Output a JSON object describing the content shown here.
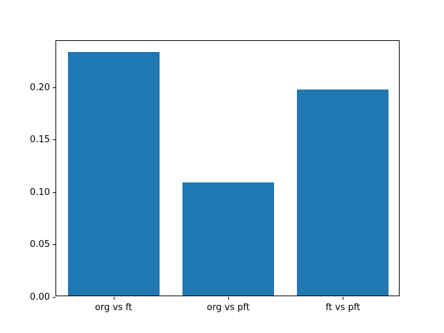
{
  "chart_data": {
    "type": "bar",
    "categories": [
      "org vs ft",
      "org vs pft",
      "ft vs pft"
    ],
    "values": [
      0.233,
      0.108,
      0.197
    ],
    "title": "",
    "xlabel": "",
    "ylabel": "",
    "ylim": [
      0,
      0.2447
    ],
    "yticks": [
      0.0,
      0.05,
      0.1,
      0.15,
      0.2
    ],
    "ytick_labels": [
      "0.00",
      "0.05",
      "0.10",
      "0.15",
      "0.20"
    ],
    "bar_color": "#1f77b4",
    "background_color": "#ffffff",
    "spine_color": "#000000",
    "grid": false,
    "legend": null,
    "bar_width_fraction": 0.8
  }
}
